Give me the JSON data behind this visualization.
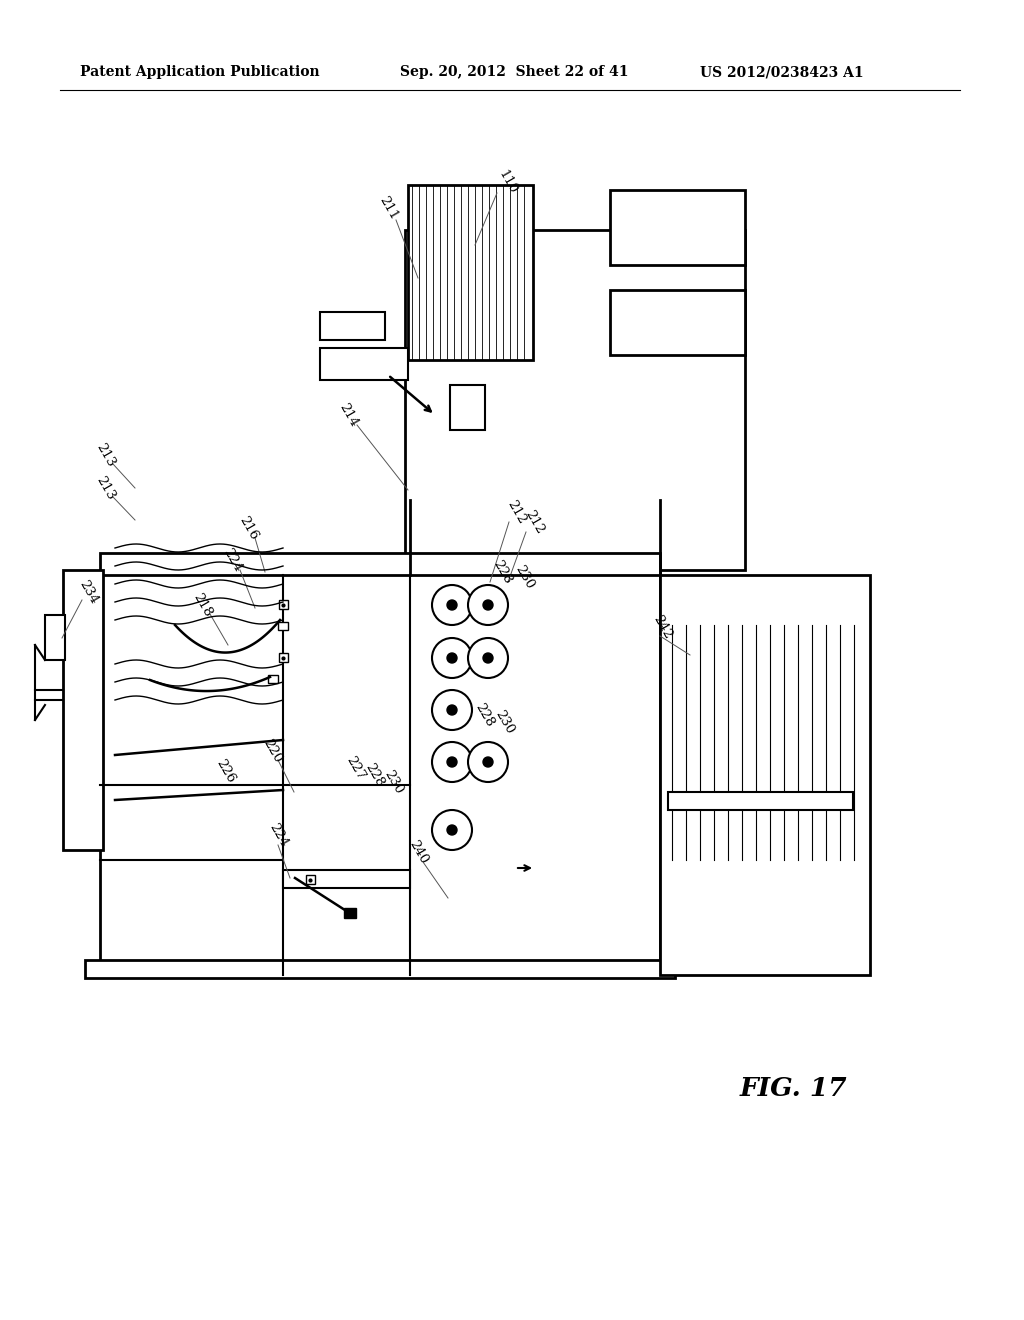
{
  "header_left": "Patent Application Publication",
  "header_center": "Sep. 20, 2012  Sheet 22 of 41",
  "header_right": "US 2012/0238423 A1",
  "figure_label": "FIG. 17",
  "background_color": "#ffffff",
  "line_color": "#000000"
}
